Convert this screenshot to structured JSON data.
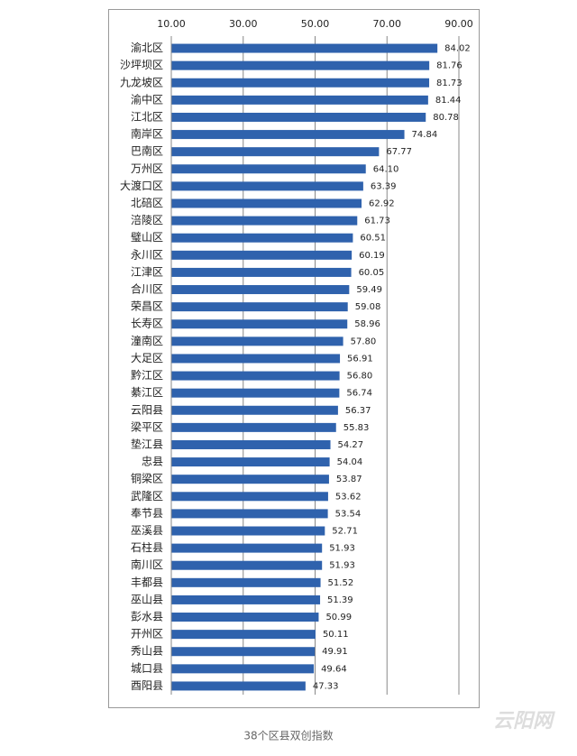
{
  "chart_data": {
    "type": "hbar",
    "categories": [
      "渝北区",
      "沙坪坝区",
      "九龙坡区",
      "渝中区",
      "江北区",
      "南岸区",
      "巴南区",
      "万州区",
      "大渡口区",
      "北碚区",
      "涪陵区",
      "璧山区",
      "永川区",
      "江津区",
      "合川区",
      "荣昌区",
      "长寿区",
      "潼南区",
      "大足区",
      "黔江区",
      "綦江区",
      "云阳县",
      "梁平区",
      "垫江县",
      "忠县",
      "铜梁区",
      "武隆区",
      "奉节县",
      "巫溪县",
      "石柱县",
      "南川区",
      "丰都县",
      "巫山县",
      "彭水县",
      "开州区",
      "秀山县",
      "城口县",
      "酉阳县"
    ],
    "values": [
      84.02,
      81.76,
      81.73,
      81.44,
      80.78,
      74.84,
      67.77,
      64.1,
      63.39,
      62.92,
      61.73,
      60.51,
      60.19,
      60.05,
      59.49,
      59.08,
      58.96,
      57.8,
      56.91,
      56.8,
      56.74,
      56.37,
      55.83,
      54.27,
      54.04,
      53.87,
      53.62,
      53.54,
      52.71,
      51.93,
      51.93,
      51.52,
      51.39,
      50.99,
      50.11,
      49.91,
      49.64,
      47.33
    ],
    "value_labels": [
      "84.02",
      "81.76",
      "81.73",
      "81.44",
      "80.78",
      "74.84",
      "67.77",
      "64.10",
      "63.39",
      "62.92",
      "61.73",
      "60.51",
      "60.19",
      "60.05",
      "59.49",
      "59.08",
      "58.96",
      "57.80",
      "56.91",
      "56.80",
      "56.74",
      "56.37",
      "55.83",
      "54.27",
      "54.04",
      "53.87",
      "53.62",
      "53.54",
      "52.71",
      "51.93",
      "51.93",
      "51.52",
      "51.39",
      "50.99",
      "50.11",
      "49.91",
      "49.64",
      "47.33"
    ],
    "color": "#2f62ad",
    "xlim": [
      10,
      90
    ],
    "xticks": [
      {
        "value": 10,
        "label": "10.00"
      },
      {
        "value": 30,
        "label": "30.00"
      },
      {
        "value": 50,
        "label": "50.00"
      },
      {
        "value": 70,
        "label": "70.00"
      },
      {
        "value": 90,
        "label": "90.00"
      }
    ],
    "grid": true,
    "caption": "38个区县双创指数"
  },
  "watermark": "云阳网"
}
